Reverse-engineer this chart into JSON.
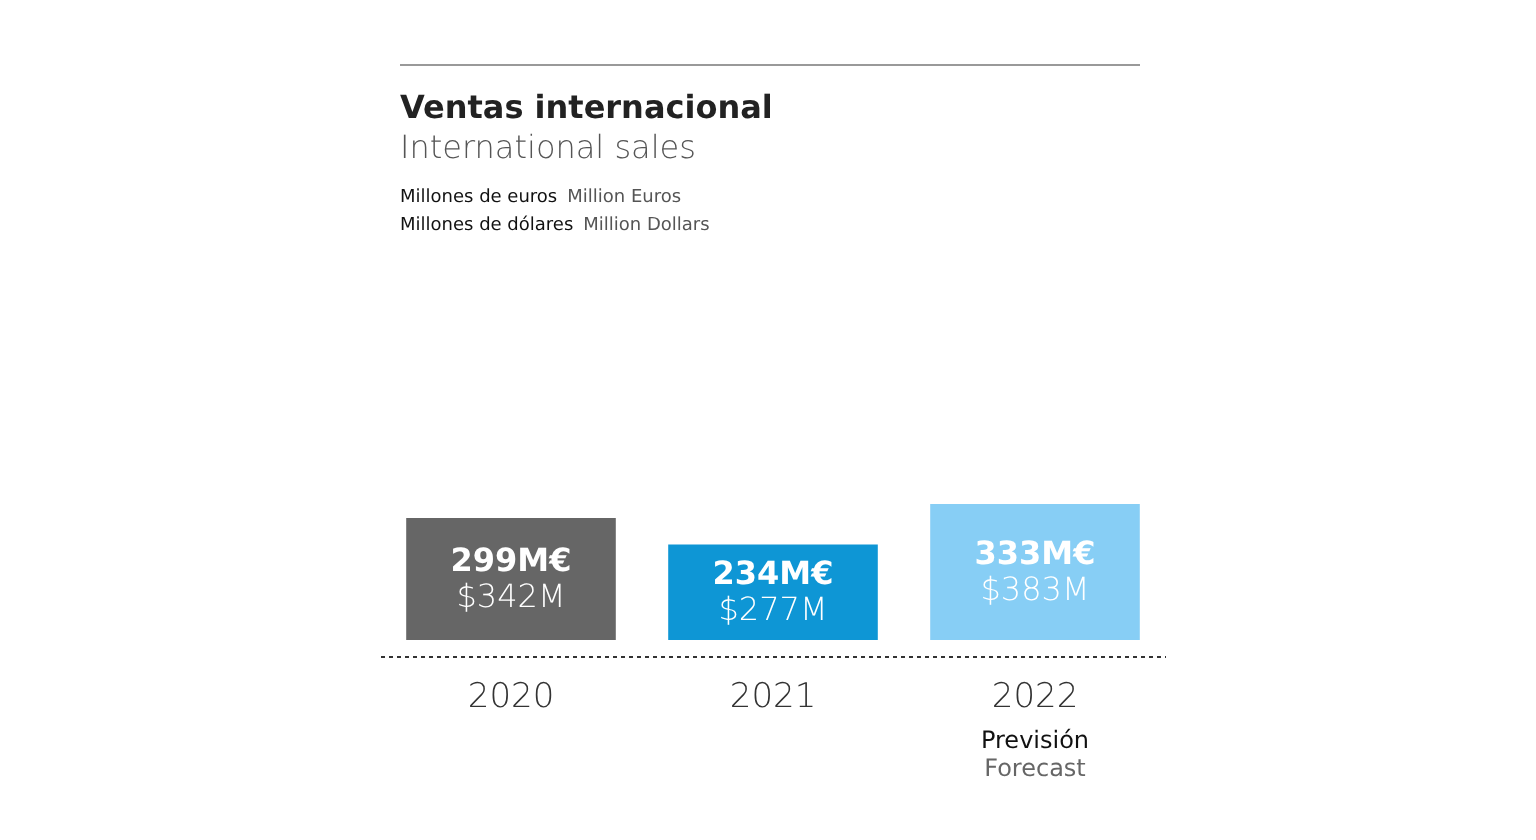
{
  "chart_data": {
    "type": "bar",
    "title": "Ventas internacional",
    "subtitle": "International sales",
    "categories": [
      "2020",
      "2021",
      "2022"
    ],
    "values": [
      299,
      234,
      333
    ],
    "colors": [
      "#666666",
      "#0e96d5",
      "#87cef5"
    ],
    "value_labels": [
      "299M€",
      "234M€",
      "333M€"
    ],
    "annotations": [
      "Millones de euros",
      "Million Euros",
      "Millones de dólares",
      "Million Dollars",
      "$342M",
      "$277M",
      "$383M",
      "Previsión",
      "Forecast"
    ]
  }
}
